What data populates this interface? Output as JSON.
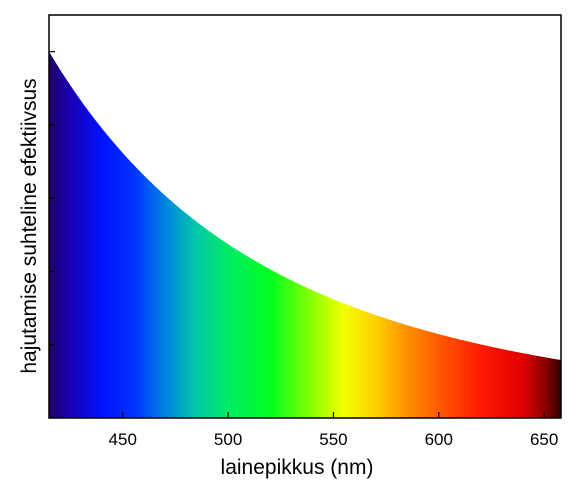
{
  "chart_data": {
    "type": "area",
    "title": "",
    "xlabel": "lainepikkus (nm)",
    "ylabel": "hajutamise suhteline efektiivsus",
    "xlim": [
      415,
      658
    ],
    "ylim": [
      0,
      1.1
    ],
    "x_ticks": [
      450,
      500,
      550,
      600,
      650
    ],
    "x_tick_labels": [
      "450",
      "500",
      "550",
      "600",
      "650"
    ],
    "y_ticks": [
      0.2,
      0.4,
      0.6,
      0.8,
      1.0
    ],
    "y_tick_labels_shown": false,
    "grid": false,
    "legend": "none",
    "curve_model": "relative scattering proportional to wavelength^-4, normalized to 1 at 415 nm",
    "x": [
      415,
      450,
      500,
      550,
      600,
      650,
      658
    ],
    "y": [
      1.0,
      0.72,
      0.47,
      0.32,
      0.23,
      0.17,
      0.16
    ],
    "fill": "visible spectrum color gradient under the curve",
    "spectrum_colors": [
      {
        "nm": 415,
        "color": "#1e0066"
      },
      {
        "nm": 425,
        "color": "#1a00b4"
      },
      {
        "nm": 440,
        "color": "#0012ff"
      },
      {
        "nm": 455,
        "color": "#0030ff"
      },
      {
        "nm": 470,
        "color": "#0082e0"
      },
      {
        "nm": 485,
        "color": "#00c8a8"
      },
      {
        "nm": 500,
        "color": "#00ec64"
      },
      {
        "nm": 520,
        "color": "#00ff20"
      },
      {
        "nm": 540,
        "color": "#8cff00"
      },
      {
        "nm": 555,
        "color": "#f5ff00"
      },
      {
        "nm": 570,
        "color": "#ffd000"
      },
      {
        "nm": 585,
        "color": "#ff9000"
      },
      {
        "nm": 600,
        "color": "#ff5a00"
      },
      {
        "nm": 620,
        "color": "#ff1a00"
      },
      {
        "nm": 640,
        "color": "#e00000"
      },
      {
        "nm": 650,
        "color": "#900000"
      },
      {
        "nm": 658,
        "color": "#300000"
      }
    ]
  }
}
